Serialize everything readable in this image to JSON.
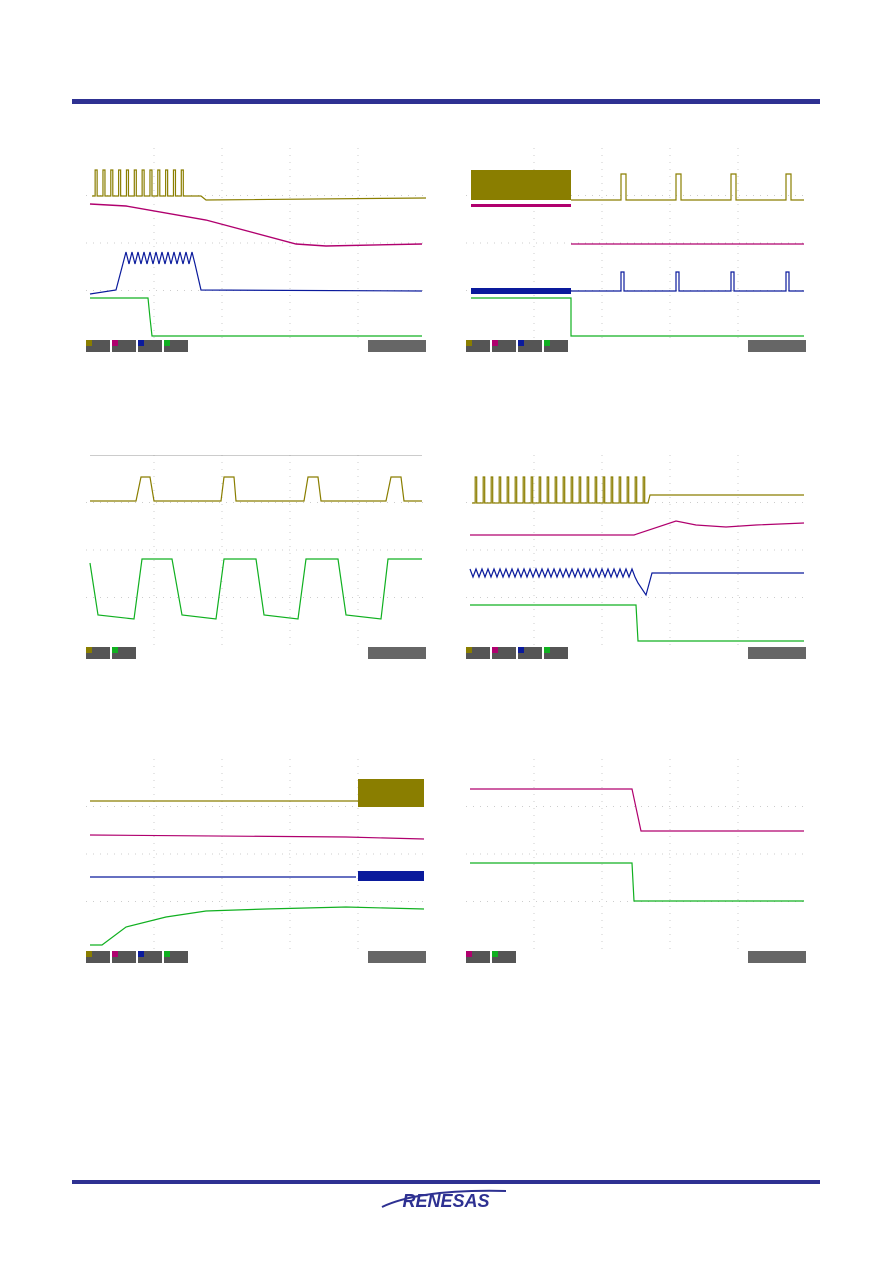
{
  "logo": {
    "text": "RENESAS",
    "color": "#2e3192"
  },
  "colors": {
    "ch1": "#8a7e00",
    "ch2": "#b0006e",
    "ch3": "#0a1a9c",
    "ch4": "#10b020",
    "grid": "#9a9a9a",
    "rule": "#2e3192"
  },
  "scopes": [
    {
      "id": "scope-1",
      "channels": [
        "1",
        "2",
        "3",
        "4"
      ]
    },
    {
      "id": "scope-2",
      "channels": [
        "1",
        "2",
        "3",
        "4"
      ]
    },
    {
      "id": "scope-3",
      "channels": [
        "1",
        "4"
      ]
    },
    {
      "id": "scope-4",
      "channels": [
        "1",
        "2",
        "3",
        "4"
      ]
    },
    {
      "id": "scope-5",
      "channels": [
        "1",
        "2",
        "3",
        "4"
      ]
    },
    {
      "id": "scope-6",
      "channels": [
        "2",
        "4"
      ]
    }
  ]
}
